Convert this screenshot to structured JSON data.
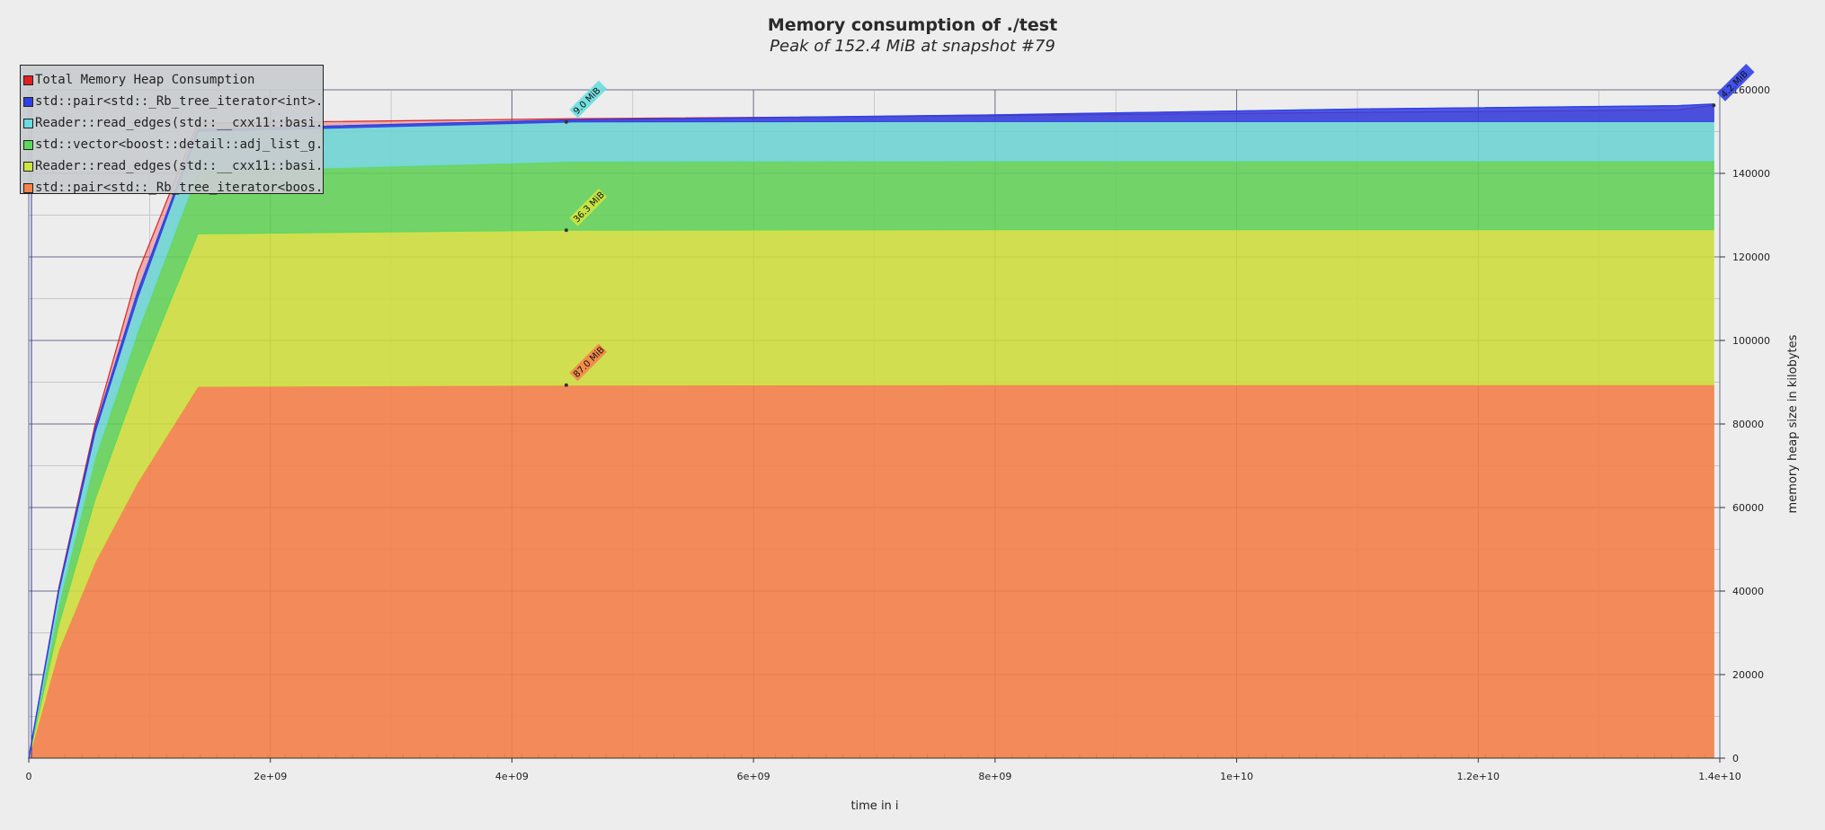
{
  "chart_data": {
    "type": "area",
    "stacked": true,
    "title": "Memory consumption of ./test",
    "subtitle": "Peak of 152.4 MiB at snapshot #79",
    "xlabel": "time in i",
    "ylabel": "memory heap size in kilobytes",
    "xlim": [
      0,
      14000000000
    ],
    "ylim": [
      0,
      160000
    ],
    "x_ticks": [
      0,
      2000000000,
      4000000000,
      6000000000,
      8000000000,
      10000000000,
      12000000000,
      14000000000
    ],
    "x_tick_labels": [
      "0",
      "2e+09",
      "4e+09",
      "6e+09",
      "8e+09",
      "1e+10",
      "1.2e+10",
      "1.4e+10"
    ],
    "y_ticks": [
      0,
      20000,
      40000,
      60000,
      80000,
      100000,
      120000,
      140000,
      160000
    ],
    "y_tick_labels": [
      "0",
      "20000",
      "40000",
      "60000",
      "80000",
      "100000",
      "120000",
      "140000",
      "160000"
    ],
    "y_axis_side": "right",
    "grid": true,
    "legend_position": "top-left",
    "x": [
      0,
      250000000,
      550000000,
      900000000,
      1400000000,
      4500000000,
      8000000000,
      11000000000,
      13650000000,
      13950000000
    ],
    "series": [
      {
        "name": "std::pair<std::_Rb_tree_iterator<boos...",
        "color": "#f4844a",
        "values": [
          0,
          26000,
          47000,
          66000,
          89000,
          89300,
          89400,
          89400,
          89400,
          89400
        ]
      },
      {
        "name": "Reader::read_edges(std::__cxx11::basi...",
        "color": "#cde640",
        "values": [
          0,
          6000,
          15000,
          24000,
          36500,
          37100,
          37100,
          37100,
          37100,
          37100
        ]
      },
      {
        "name": "std::vector<boost::detail::adj_list_g...",
        "color": "#5cd95c",
        "values": [
          0,
          5000,
          10000,
          12000,
          15000,
          16500,
          16500,
          16500,
          16500,
          16500
        ]
      },
      {
        "name": "Reader::read_edges(std::__cxx11::basi...",
        "color": "#69dddd",
        "values": [
          0,
          3000,
          6000,
          8000,
          9500,
          9400,
          9400,
          9400,
          9400,
          9400
        ]
      },
      {
        "name": "std::pair<std::_Rb_tree_iterator<int>...",
        "color": "#2f3fe4",
        "values": [
          0,
          500,
          1000,
          1500,
          500,
          500,
          1600,
          3000,
          3800,
          4200
        ]
      }
    ],
    "total": {
      "name": "Total Memory Heap Consumption",
      "color": "#e02020",
      "values": [
        0,
        41000,
        80000,
        116000,
        152000,
        153100,
        153800,
        154600,
        155200,
        156300
      ]
    },
    "annotations": [
      {
        "text": "87.0 MiB",
        "x": 4450000000,
        "y": 89300,
        "color": "#f4844a"
      },
      {
        "text": "36.3 MiB",
        "x": 4450000000,
        "y": 126400,
        "color": "#cde640"
      },
      {
        "text": "9.0 MiB",
        "x": 4450000000,
        "y": 152300,
        "color": "#69dddd"
      },
      {
        "text": "4.2 MiB",
        "x": 13950000000,
        "y": 156300,
        "color": "#2f3fe4"
      }
    ]
  },
  "legend": {
    "items": [
      {
        "label": "Total Memory Heap Consumption",
        "color": "#e02020"
      },
      {
        "label": "std::pair<std::_Rb_tree_iterator<int>...",
        "color": "#2f3fe4"
      },
      {
        "label": "Reader::read_edges(std::__cxx11::basi...",
        "color": "#69dddd"
      },
      {
        "label": "std::vector<boost::detail::adj_list_g...",
        "color": "#5cd95c"
      },
      {
        "label": "Reader::read_edges(std::__cxx11::basi...",
        "color": "#cde640"
      },
      {
        "label": "std::pair<std::_Rb_tree_iterator<boos...",
        "color": "#f4844a"
      }
    ]
  }
}
